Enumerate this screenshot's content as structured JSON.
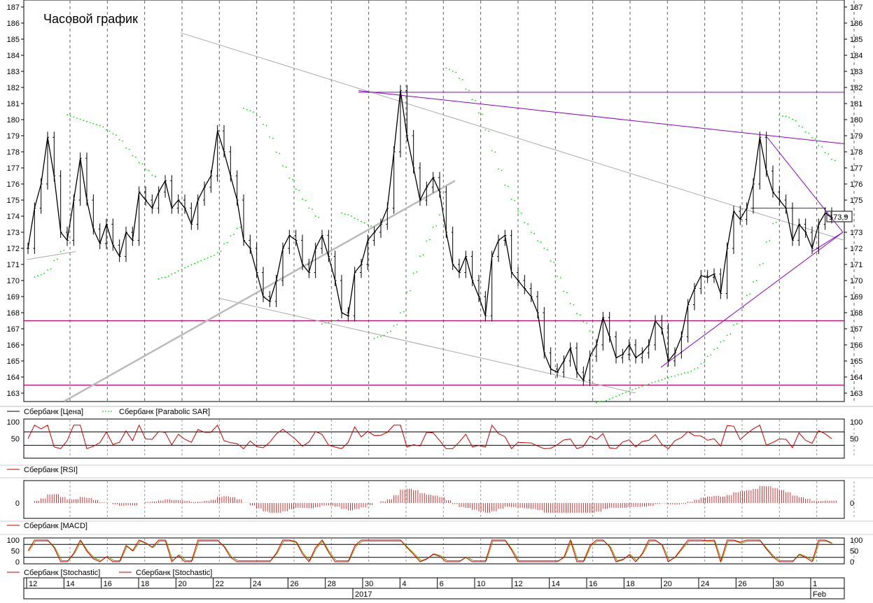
{
  "chart_data": {
    "type": "line",
    "title": "Часовой график",
    "x_ticks": [
      "12",
      "14",
      "16",
      "18",
      "20",
      "22",
      "24",
      "26",
      "28",
      "30",
      "4",
      "6",
      "10",
      "12",
      "14",
      "16",
      "18",
      "20",
      "24",
      "26",
      "30",
      "1"
    ],
    "x_year_label": "2017",
    "x_month_label": "Feb",
    "price_axis": {
      "ylim": [
        163,
        187
      ],
      "ticks": [
        163,
        164,
        165,
        166,
        167,
        168,
        169,
        170,
        171,
        172,
        173,
        174,
        175,
        176,
        177,
        178,
        179,
        180,
        181,
        182,
        183,
        184,
        185,
        186,
        187
      ]
    },
    "last_price_label": "173,9",
    "last_price": 173.9,
    "price_series": {
      "name": "Сбербанк [Цена]",
      "color": "#000000",
      "values": [
        172,
        174.5,
        176,
        178.9,
        176.5,
        173,
        172.5,
        175,
        177.6,
        175,
        173.2,
        172.3,
        173.5,
        172.2,
        171.5,
        173,
        172.5,
        175.5,
        175,
        174.5,
        175.5,
        176.2,
        174.5,
        175,
        174.5,
        173.5,
        175,
        175.8,
        176.5,
        179.3,
        178,
        176.5,
        175,
        172.5,
        172,
        170.5,
        169,
        168.7,
        170,
        172,
        172.8,
        172.5,
        171,
        170.5,
        172,
        172.8,
        171.5,
        170,
        168,
        167.8,
        170.5,
        171,
        172.5,
        173,
        173.5,
        174.5,
        178,
        181.8,
        179,
        177,
        175,
        175.8,
        176.4,
        175.5,
        173,
        171,
        170.5,
        171.5,
        170,
        169,
        167.8,
        171.5,
        172.5,
        172.8,
        170.5,
        170,
        169.5,
        169,
        168,
        165.5,
        164.5,
        164.3,
        165,
        165.8,
        164.3,
        163.8,
        165.3,
        166,
        167.7,
        166.5,
        165.2,
        165.4,
        166,
        165.2,
        165.5,
        166,
        167.5,
        167,
        165,
        165.5,
        166.5,
        168.5,
        169.5,
        170.3,
        170.2,
        170.4,
        169.2,
        172,
        174.3,
        173.8,
        174.5,
        176,
        178.9,
        176.8,
        175.5,
        175,
        174.5,
        172.5,
        173.5,
        173,
        172,
        173.5,
        174.2,
        173.9
      ]
    },
    "sar_series": {
      "name": "Сбербанк [Parabolic SAR]",
      "color": "#00dd00"
    },
    "rsi_panel": {
      "ylim": [
        0,
        100
      ],
      "ticks": [
        50,
        100
      ],
      "levels": [
        30,
        70
      ],
      "legend": "Сбербанк [RSI]",
      "color": "#cc0000"
    },
    "macd_panel": {
      "ticks": [
        0
      ],
      "legend": "Сбербанк [MACD]",
      "color": "#cc0000"
    },
    "stoch_panel": {
      "ylim": [
        0,
        100
      ],
      "ticks": [
        0,
        50,
        100
      ],
      "levels": [
        20,
        80
      ],
      "legends": [
        "Сбербанк [Stochastic]",
        "Сбербанк [Stochastic]"
      ],
      "colors": [
        "#cc0000",
        "#cc0000"
      ]
    },
    "horizontal_levels": [
      167.5,
      163.5,
      181.7,
      174.5
    ],
    "level_color": "#cc0066",
    "trend_color": "#8800cc"
  }
}
